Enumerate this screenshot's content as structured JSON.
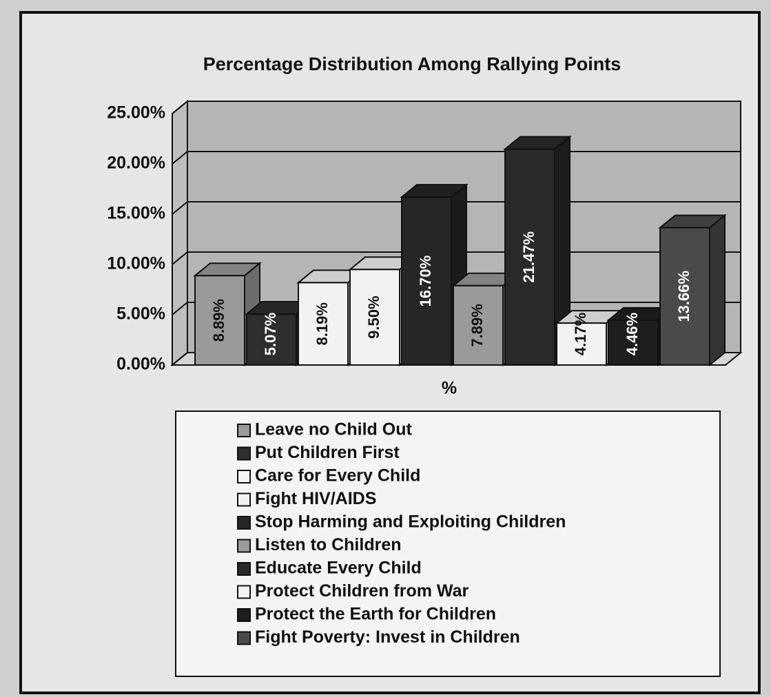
{
  "chart_data": {
    "type": "bar3d",
    "title": "Percentage Distribution Among Rallying Points",
    "categories": [
      "%"
    ],
    "series": [
      {
        "name": "Leave no Child Out",
        "color": "#9a9a9a",
        "values": [
          8.89
        ],
        "value_labels": [
          "8.89%"
        ]
      },
      {
        "name": "Put Children First",
        "color": "#2e2e2e",
        "values": [
          5.07
        ],
        "value_labels": [
          "5.07%"
        ]
      },
      {
        "name": "Care for Every Child",
        "color": "#f2f2f2",
        "values": [
          8.19
        ],
        "value_labels": [
          "8.19%"
        ]
      },
      {
        "name": "Fight HIV/AIDS",
        "color": "#f2f2f2",
        "values": [
          9.5
        ],
        "value_labels": [
          "9.50%"
        ]
      },
      {
        "name": "Stop Harming and Exploiting Children",
        "color": "#262626",
        "values": [
          16.7
        ],
        "value_labels": [
          "16.70%"
        ]
      },
      {
        "name": "Listen to Children",
        "color": "#9a9a9a",
        "values": [
          7.89
        ],
        "value_labels": [
          "7.89%"
        ]
      },
      {
        "name": "Educate Every Child",
        "color": "#2a2a2a",
        "values": [
          21.47
        ],
        "value_labels": [
          "21.47%"
        ]
      },
      {
        "name": "Protect Children from War",
        "color": "#f2f2f2",
        "values": [
          4.17
        ],
        "value_labels": [
          "4.17%"
        ]
      },
      {
        "name": "Protect the Earth for Children",
        "color": "#1e1e1e",
        "values": [
          4.46
        ],
        "value_labels": [
          "4.46%"
        ]
      },
      {
        "name": "Fight Poverty: Invest in Children",
        "color": "#4a4a4a",
        "values": [
          13.66
        ],
        "value_labels": [
          "13.66%"
        ]
      }
    ],
    "ylim": [
      0,
      25
    ],
    "yticks": [
      {
        "value": 0,
        "label": "0.00%"
      },
      {
        "value": 5,
        "label": "5.00%"
      },
      {
        "value": 10,
        "label": "10.00%"
      },
      {
        "value": 15,
        "label": "15.00%"
      },
      {
        "value": 20,
        "label": "20.00%"
      },
      {
        "value": 25,
        "label": "25.00%"
      }
    ],
    "grid": true
  }
}
